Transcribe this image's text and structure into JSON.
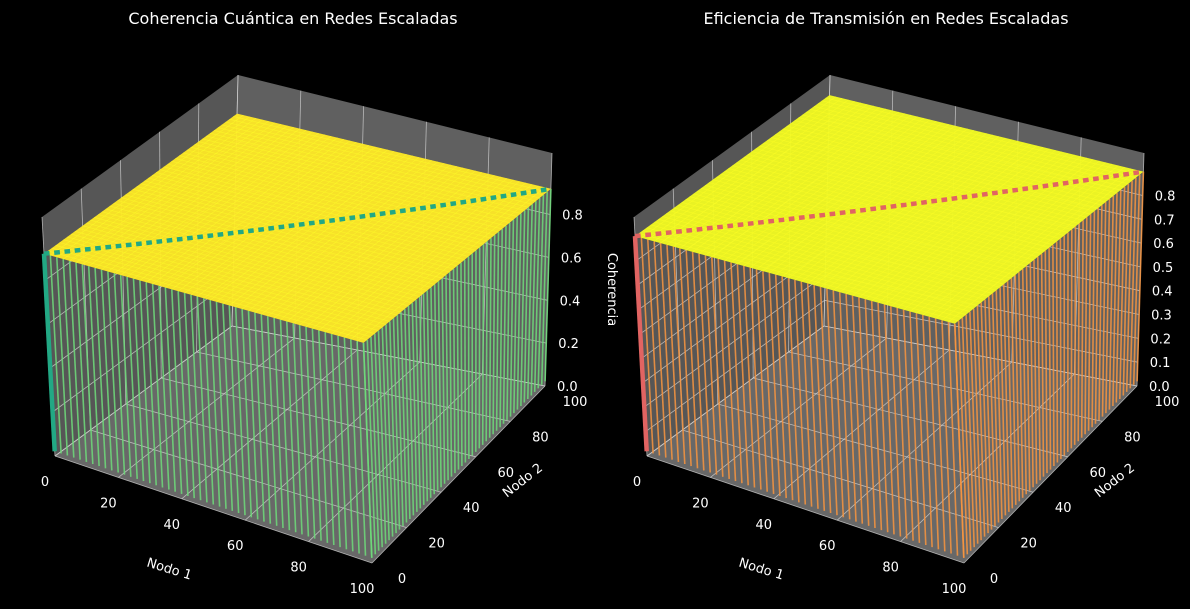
{
  "figure": {
    "background": "#000000"
  },
  "chart_data": [
    {
      "type": "surface3d",
      "title": "Coherencia Cuántica en Redes Escaladas",
      "xlabel": "Nodo 1",
      "ylabel": "Nodo 2",
      "zlabel": "Coherencia",
      "xlim": [
        0,
        100
      ],
      "ylim": [
        0,
        100
      ],
      "zlim": [
        0,
        1
      ],
      "xticks": [
        "0",
        "20",
        "40",
        "60",
        "80",
        "100"
      ],
      "yticks": [
        "0",
        "20",
        "40",
        "60",
        "80",
        "100"
      ],
      "zticks": [
        "0.0",
        "0.2",
        "0.4",
        "0.6",
        "0.8"
      ],
      "surface": {
        "plateau_value": 0.92,
        "diagonal_value": 0.0,
        "note_colormap": "viridis"
      },
      "colors": {
        "plateau": "#fde725",
        "diagonal": "#22a884",
        "walls": "#6fdc7a",
        "pane": "#7a7a7a"
      },
      "grid": true
    },
    {
      "type": "surface3d",
      "title": "Eficiencia de Transmisión en Redes Escaladas",
      "xlabel": "Nodo 1",
      "ylabel": "Nodo 2",
      "zlabel": "Eficiencia",
      "xlim": [
        0,
        100
      ],
      "ylim": [
        0,
        100
      ],
      "zlim": [
        0,
        0.9
      ],
      "xticks": [
        "0",
        "20",
        "40",
        "60",
        "80",
        "100"
      ],
      "yticks": [
        "0",
        "20",
        "40",
        "60",
        "80",
        "100"
      ],
      "zticks": [
        "0.0",
        "0.1",
        "0.2",
        "0.3",
        "0.4",
        "0.5",
        "0.6",
        "0.7",
        "0.8"
      ],
      "surface": {
        "plateau_value": 0.9,
        "diagonal_value": 0.0,
        "note_colormap": "plasma"
      },
      "colors": {
        "plateau": "#f0f921",
        "diagonal": "#e16462",
        "walls": "#f89540",
        "pane": "#7a7a7a"
      },
      "grid": true
    }
  ]
}
